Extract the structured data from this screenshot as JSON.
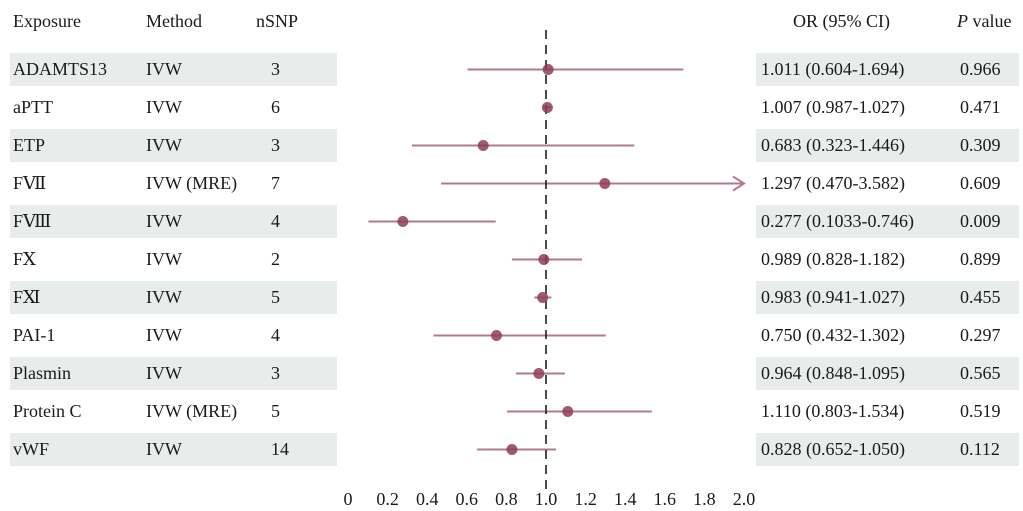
{
  "headers": {
    "exposure": "Exposure",
    "method": "Method",
    "nsnp": "nSNP",
    "or_ci": "OR (95% CI)",
    "p_italic": "P",
    "p_rest": " value"
  },
  "colors": {
    "band": "#e8ecea",
    "ci_line": "#b07a96",
    "point": "#8e3d55",
    "reference": "#111111"
  },
  "chart_data": {
    "type": "forest",
    "xlim": [
      0,
      2.0
    ],
    "reference_line": 1.0,
    "reference_style": "dashed",
    "xticks": [
      "0",
      "0.2",
      "0.4",
      "0.6",
      "0.8",
      "1.0",
      "1.2",
      "1.4",
      "1.6",
      "1.8",
      "2.0"
    ],
    "tick_values": [
      0,
      0.2,
      0.4,
      0.6,
      0.8,
      1.0,
      1.2,
      1.4,
      1.6,
      1.8,
      2.0
    ],
    "rows": [
      {
        "exposure": "ADAMTS13",
        "method": "IVW",
        "nsnp": "3",
        "or": 1.011,
        "lower": 0.604,
        "upper": 1.694,
        "or_ci": "1.011 (0.604-1.694)",
        "p": "0.966",
        "shaded": true
      },
      {
        "exposure": "aPTT",
        "method": "IVW",
        "nsnp": "6",
        "or": 1.007,
        "lower": 0.987,
        "upper": 1.027,
        "or_ci": "1.007 (0.987-1.027)",
        "p": "0.471",
        "shaded": false
      },
      {
        "exposure": "ETP",
        "method": "IVW",
        "nsnp": "3",
        "or": 0.683,
        "lower": 0.323,
        "upper": 1.446,
        "or_ci": "0.683 (0.323-1.446)",
        "p": "0.309",
        "shaded": true
      },
      {
        "exposure": "FⅦ",
        "method": "IVW (MRE)",
        "nsnp": "7",
        "or": 1.297,
        "lower": 0.47,
        "upper": 3.582,
        "or_ci": "1.297 (0.470-3.582)",
        "p": "0.609",
        "shaded": false
      },
      {
        "exposure": "FⅧ",
        "method": "IVW",
        "nsnp": "4",
        "or": 0.277,
        "lower": 0.1033,
        "upper": 0.746,
        "or_ci": "0.277 (0.1033-0.746)",
        "p": "0.009",
        "shaded": true
      },
      {
        "exposure": "FⅩ",
        "method": "IVW",
        "nsnp": "2",
        "or": 0.989,
        "lower": 0.828,
        "upper": 1.182,
        "or_ci": "0.989 (0.828-1.182)",
        "p": "0.899",
        "shaded": false
      },
      {
        "exposure": "FⅪ",
        "method": "IVW",
        "nsnp": "5",
        "or": 0.983,
        "lower": 0.941,
        "upper": 1.027,
        "or_ci": "0.983 (0.941-1.027)",
        "p": "0.455",
        "shaded": true
      },
      {
        "exposure": "PAI-1",
        "method": "IVW",
        "nsnp": "4",
        "or": 0.75,
        "lower": 0.432,
        "upper": 1.302,
        "or_ci": "0.750 (0.432-1.302)",
        "p": "0.297",
        "shaded": false
      },
      {
        "exposure": "Plasmin",
        "method": "IVW",
        "nsnp": "3",
        "or": 0.964,
        "lower": 0.848,
        "upper": 1.095,
        "or_ci": "0.964 (0.848-1.095)",
        "p": "0.565",
        "shaded": true
      },
      {
        "exposure": "Protein C",
        "method": "IVW (MRE)",
        "nsnp": "5",
        "or": 1.11,
        "lower": 0.803,
        "upper": 1.534,
        "or_ci": "1.110 (0.803-1.534)",
        "p": "0.519",
        "shaded": false
      },
      {
        "exposure": "vWF",
        "method": "IVW",
        "nsnp": "14",
        "or": 0.828,
        "lower": 0.652,
        "upper": 1.05,
        "or_ci": "0.828 (0.652-1.050)",
        "p": "0.112",
        "shaded": true
      }
    ]
  }
}
